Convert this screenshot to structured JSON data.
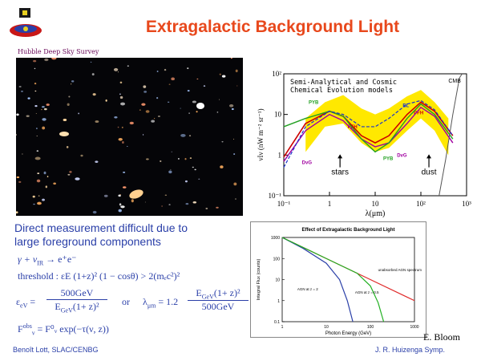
{
  "slide": {
    "title": "Extragalactic Background Light",
    "hubble_caption": "Hubble Deep Sky Survey",
    "direct_line1": "Direct measurement difficult due to",
    "direct_line2": "large foreground components",
    "eq1": "γ + ν",
    "eq1_sub": "IR",
    "eq1_rhs": " → e⁺e⁻",
    "eq2": "threshold :  εE (1+z)² (1 − cosθ) > 2(mₑc²)²",
    "eq3_lhs": "ε",
    "eq3_sub": "eV",
    "eq3_num": "500GeV",
    "eq3_den": "E",
    "eq3_den_sub": "GeV",
    "eq3_den_rest": "(1+ z)²",
    "eq3_or": "or",
    "eq4_lhs": "λ",
    "eq4_sub": "μm",
    "eq4_coef": "= 1.2",
    "eq4_num": "E",
    "eq4_num_sub": "GeV",
    "eq4_num_rest": "(1+ z)²",
    "eq4_den": "500GeV",
    "eq5_lhs": "F",
    "eq5_sup": "obs",
    "eq5_sub": "ν",
    "eq5_rhs": " = F⁰ᵥ exp(−τ(ν, z))",
    "ebloom": "E. Bloom",
    "author": "Benoît Lott, SLAC/CENBG",
    "symposium": "J. R. Huizenga Symp."
  },
  "colors": {
    "title": "#e8481c",
    "body_text": "#2a3fa8",
    "band": "#ffe800",
    "pfh": "#cc0000",
    "dvg": "#a000a0",
    "pyb": "#22a022",
    "bl": "#1a33cc"
  },
  "chart_data": [
    {
      "type": "line",
      "title": "Semi-Analytical and Cosmic Chemical Evolution models",
      "xlabel": "λ(μm)",
      "ylabel": "νIν (nW m⁻² sr⁻¹)",
      "xscale": "log",
      "yscale": "log",
      "xlim": [
        0.1,
        1000
      ],
      "ylim": [
        0.1,
        100
      ],
      "xticks": [
        "10⁻¹",
        "1",
        "10",
        "10²",
        "10³"
      ],
      "yticks": [
        "10⁻¹",
        "1",
        "10",
        "10²"
      ],
      "annotations": [
        "stars",
        "dust",
        "CMB"
      ],
      "series": [
        {
          "name": "PFH",
          "x": [
            0.1,
            0.3,
            1,
            2,
            5,
            10,
            20,
            50,
            100,
            200,
            500
          ],
          "y": [
            0.9,
            6,
            12,
            9,
            3,
            2,
            3,
            10,
            20,
            12,
            3
          ]
        },
        {
          "name": "DvG",
          "x": [
            0.1,
            0.3,
            1,
            2,
            5,
            10,
            20,
            50,
            100,
            200,
            500
          ],
          "y": [
            0.7,
            4,
            10,
            7,
            2.5,
            1.6,
            2,
            6,
            15,
            9,
            2
          ]
        },
        {
          "name": "PYB",
          "x": [
            0.1,
            0.3,
            1,
            2,
            5,
            10,
            20,
            50,
            100,
            200,
            500
          ],
          "y": [
            5,
            8,
            12,
            9,
            2.5,
            1.2,
            2,
            8,
            18,
            10,
            2.5
          ]
        },
        {
          "name": "BL",
          "x": [
            0.1,
            0.3,
            1,
            2,
            5,
            10,
            20,
            50,
            100,
            200,
            500
          ],
          "y": [
            0.5,
            5,
            12,
            10,
            5,
            5,
            8,
            18,
            22,
            13,
            3
          ]
        }
      ]
    },
    {
      "type": "line",
      "title": "Effect of Extragalactic Background Light",
      "xlabel": "Photon Energy (GeV)",
      "ylabel": "Integral Flux (counts)",
      "xscale": "log",
      "yscale": "log",
      "xlim": [
        1,
        1000
      ],
      "ylim": [
        0.1,
        1000
      ],
      "xticks": [
        "1",
        "10",
        "100",
        "1000"
      ],
      "yticks": [
        "0.1",
        "1",
        "10",
        "100",
        "1000"
      ],
      "series": [
        {
          "name": "unabsorbed AGN spectrum",
          "x": [
            1,
            10,
            100,
            1000
          ],
          "y": [
            1000,
            100,
            10,
            1
          ]
        },
        {
          "name": "AGN at z = 2",
          "x": [
            1,
            3,
            10,
            20,
            30,
            40
          ],
          "y": [
            1000,
            300,
            60,
            10,
            1,
            0.1
          ]
        },
        {
          "name": "AGN at z = 0.5",
          "x": [
            1,
            10,
            50,
            100,
            150,
            200
          ],
          "y": [
            1000,
            100,
            20,
            5,
            0.8,
            0.1
          ]
        }
      ]
    }
  ]
}
